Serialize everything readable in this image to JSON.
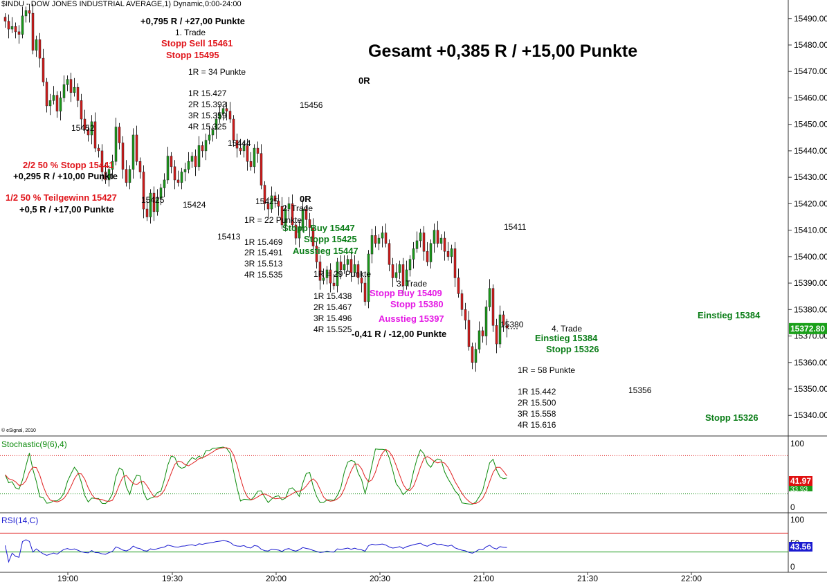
{
  "chart_data": [
    {
      "type": "candlestick",
      "title": "$INDU - DOW JONES INDUSTRIAL AVERAGE,1) Dynamic,0:00-24:00",
      "ylim": [
        15333,
        15497
      ],
      "yticks": [
        15340,
        15350,
        15360,
        15370,
        15380,
        15390,
        15400,
        15410,
        15420,
        15430,
        15440,
        15450,
        15460,
        15470,
        15480,
        15490
      ],
      "ytick_labels": [
        "15340.00",
        "15350.00",
        "15360.00",
        "15370.00",
        "15380.00",
        "15390.00",
        "15400.00",
        "15410.00",
        "15420.00",
        "15430.00",
        "15440.00",
        "15450.00",
        "15460.00",
        "15470.00",
        "15480.00",
        "15490.00"
      ],
      "last_price_label": "15372.80",
      "last_price": 15372.8,
      "copyright": "© eSignal, 2010",
      "xtick_labels": [
        "19:00",
        "19:30",
        "20:00",
        "20:30",
        "21:00",
        "21:30",
        "22:00"
      ],
      "notable_levels": {
        "high_1": 15452,
        "low_1": 15425,
        "low_2": 15424,
        "high_2": 15444,
        "low_3": 15413,
        "low_4": 15425,
        "high_3": 15456,
        "high_4": 15411,
        "low_5": 15380,
        "low_6": 15356
      },
      "closes": [
        15489,
        15486,
        15487,
        15485,
        15484,
        15491,
        15493,
        15492,
        15478,
        15482,
        15475,
        15466,
        15457,
        15459,
        15461,
        15455,
        15460,
        15465,
        15467,
        15462,
        15464,
        15459,
        15452,
        15448,
        15446,
        15451,
        15441,
        15440,
        15432,
        15429,
        15433,
        15436,
        15449,
        15443,
        15433,
        15428,
        15433,
        15446,
        15436,
        15432,
        15418,
        15415,
        15424,
        15417,
        15422,
        15426,
        15429,
        15438,
        15434,
        15429,
        15428,
        15432,
        15433,
        15436,
        15438,
        15434,
        15442,
        15440,
        15444,
        15446,
        15448,
        15452,
        15454,
        15456,
        15455,
        15452,
        15444,
        15441,
        15440,
        15442,
        15436,
        15434,
        15441,
        15439,
        15427,
        15420,
        15418,
        15423,
        15421,
        15419,
        15412,
        15418,
        15420,
        15412,
        15407,
        15411,
        15418,
        15414,
        15411,
        15404,
        15398,
        15391,
        15392,
        15395,
        15390,
        15389,
        15398,
        15395,
        15397,
        15399,
        15394,
        15397,
        15392,
        15390,
        15383,
        15401,
        15408,
        15405,
        15407,
        15409,
        15405,
        15397,
        15392,
        15394,
        15397,
        15389,
        15395,
        15399,
        15403,
        15406,
        15409,
        15402,
        15398,
        15405,
        15410,
        15405,
        15407,
        15402,
        15400,
        15403,
        15392,
        15386,
        15380,
        15376,
        15366,
        15360,
        15365,
        15372,
        15370,
        15381,
        15388,
        15374,
        15367,
        15378,
        15374,
        15373
      ],
      "series": [
        {
          "name": "Stochastic(9(6),4)",
          "panel": "stochastic",
          "ylim": [
            0,
            100
          ],
          "ytick_labels": [
            "100",
            "0"
          ],
          "overbought": 80,
          "oversold": 20,
          "last_value_label": "41.97",
          "last_value_label_2": "33.93"
        },
        {
          "name": "RSI(14,C)",
          "panel": "rsi",
          "ylim": [
            0,
            100
          ],
          "ytick_labels": [
            "100",
            "50",
            "0"
          ],
          "overbought": 70,
          "oversold": 30,
          "last_value_label": "43.56"
        }
      ]
    }
  ],
  "header": {
    "title": "$INDU - DOW JONES INDUSTRIAL AVERAGE,1) Dynamic,0:00-24:00"
  },
  "annotations": {
    "summary": "Gesamt +0,385 R / +15,00 Punkte",
    "t1_result": "+0,795 R / +27,00 Punkte",
    "t1_title": "1. Trade",
    "t1_sell": "Stopp Sell 15461",
    "t1_stop": "Stopp 15495",
    "t1_risk": "1R = 34 Punkte",
    "t1_targets": [
      "1R 15.427",
      "2R 15.393",
      "3R 15.359",
      "4R 15.325"
    ],
    "zero_r_1": "0R",
    "label_15456": "15456",
    "label_15452": "15452",
    "label_15444": "15444",
    "label_15425a": "15425",
    "label_15424": "15424",
    "label_15425b": "15425",
    "label_15413": "15413",
    "partial_stop": "2/2 50 % Stopp 15441",
    "partial_stop_result": "+0,295 R / +10,00 Punkte",
    "partial_profit": "1/2 50 % Teilgewinn 15427",
    "partial_profit_result": "+0,5 R / +17,00 Punkte",
    "zero_r_2": "0R",
    "t2_title": "2. Trade",
    "t2_risk": "1R = 22 Punkte",
    "t2_buy": "Stopp Buy 15447",
    "t2_stop": "Stopp 15425",
    "t2_exit": "Ausstieg 15447",
    "t2_targets": [
      "1R 15.469",
      "2R 15.491",
      "3R 15.513",
      "4R 15.535"
    ],
    "t3_risk": "1R = 29 Punkte",
    "t3_targets": [
      "1R 15.438",
      "2R 15.467",
      "3R 15.496",
      "4R 15.525"
    ],
    "t3_title": "3. Trade",
    "t3_buy": "Stopp Buy 15409",
    "t3_stop": "Stopp 15380",
    "t3_exit": "Ausstieg 15397",
    "t3_result": "-0,41 R / -12,00 Punkte",
    "label_15411": "15411",
    "label_15380": "15380",
    "t4_title": "4. Trade",
    "t4_entry": "Einstieg 15384",
    "t4_stop": "Stopp 15326",
    "t4_risk": "1R = 58 Punkte",
    "t4_targets": [
      "1R 15.442",
      "2R 15.500",
      "3R 15.558",
      "4R 15.616"
    ],
    "label_15356": "15356",
    "right_entry": "Einstieg 15384",
    "right_stop": "Stopp 15326"
  },
  "colors": {
    "up": "#1a9a1a",
    "down": "#d41a1a",
    "stoch_k": "#0a8a0a",
    "stoch_d": "#e02020",
    "rsi": "#1a1ad0",
    "price_tag_bg": "#1aa01a",
    "stoch_tag_bg": "#e01010",
    "rsi_tag_bg": "#1a1ad0"
  }
}
